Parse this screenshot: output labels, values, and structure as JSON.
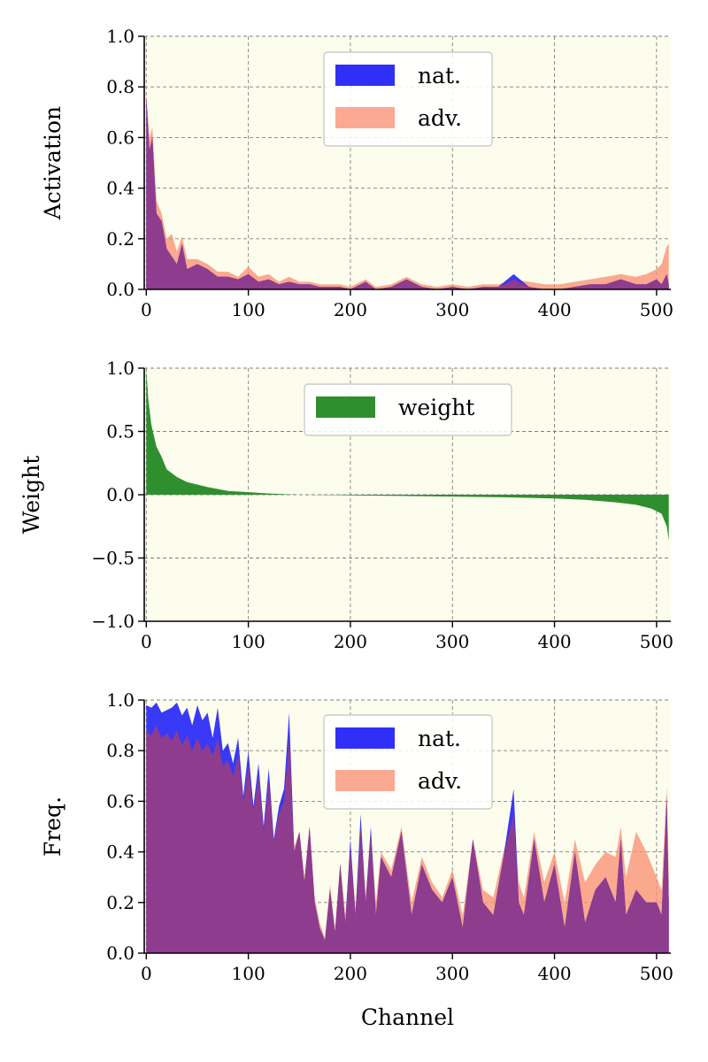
{
  "colors": {
    "background": "#fdfdee",
    "nat": "#2424f8",
    "adv": "#fa8c6e",
    "overlap": "#8e3c8e",
    "weight": "#2f8f2f",
    "grid": "#808080"
  },
  "chart_data": [
    {
      "type": "area",
      "ylabel": "Activation",
      "xlabel": "",
      "xlim": [
        -2,
        514
      ],
      "ylim": [
        0.0,
        1.0
      ],
      "xticks": [
        0,
        100,
        200,
        300,
        400,
        500
      ],
      "yticks": [
        "0.0",
        "0.2",
        "0.4",
        "0.6",
        "0.8",
        "1.0"
      ],
      "xtick_labels": [
        "0",
        "100",
        "200",
        "300",
        "400",
        "500"
      ],
      "grid": true,
      "legend_placement": "upper-center",
      "legend_labels": [
        "nat.",
        "adv."
      ],
      "series": [
        {
          "name": "nat.",
          "color": "#2424f8",
          "x": [
            0,
            3,
            6,
            10,
            15,
            20,
            25,
            30,
            35,
            40,
            50,
            60,
            70,
            80,
            90,
            100,
            110,
            120,
            130,
            140,
            150,
            160,
            170,
            180,
            190,
            200,
            215,
            225,
            240,
            255,
            270,
            285,
            300,
            315,
            330,
            345,
            360,
            375,
            390,
            405,
            420,
            435,
            450,
            465,
            480,
            490,
            500,
            505,
            510,
            512
          ],
          "y": [
            0.76,
            0.55,
            0.6,
            0.3,
            0.27,
            0.16,
            0.13,
            0.1,
            0.18,
            0.08,
            0.1,
            0.08,
            0.05,
            0.05,
            0.04,
            0.06,
            0.03,
            0.04,
            0.02,
            0.03,
            0.02,
            0.02,
            0.01,
            0.01,
            0.01,
            0.0,
            0.03,
            0.0,
            0.01,
            0.04,
            0.01,
            0.0,
            0.01,
            0.0,
            0.01,
            0.01,
            0.06,
            0.01,
            0.0,
            0.0,
            0.01,
            0.02,
            0.02,
            0.04,
            0.02,
            0.02,
            0.04,
            0.02,
            0.06,
            0.02
          ]
        },
        {
          "name": "adv.",
          "color": "#fa8c6e",
          "x": [
            0,
            3,
            6,
            10,
            15,
            20,
            25,
            30,
            35,
            40,
            50,
            60,
            70,
            80,
            90,
            100,
            110,
            120,
            130,
            140,
            150,
            160,
            170,
            180,
            190,
            200,
            215,
            225,
            240,
            255,
            270,
            285,
            300,
            315,
            330,
            345,
            360,
            375,
            390,
            405,
            420,
            435,
            450,
            465,
            480,
            490,
            500,
            505,
            510,
            512
          ],
          "y": [
            0.78,
            0.6,
            0.64,
            0.35,
            0.3,
            0.2,
            0.22,
            0.15,
            0.21,
            0.12,
            0.12,
            0.1,
            0.07,
            0.07,
            0.05,
            0.09,
            0.05,
            0.06,
            0.03,
            0.05,
            0.03,
            0.03,
            0.02,
            0.02,
            0.02,
            0.01,
            0.04,
            0.01,
            0.02,
            0.05,
            0.02,
            0.01,
            0.02,
            0.01,
            0.02,
            0.02,
            0.04,
            0.03,
            0.02,
            0.02,
            0.03,
            0.04,
            0.05,
            0.06,
            0.05,
            0.06,
            0.08,
            0.1,
            0.17,
            0.18
          ]
        }
      ]
    },
    {
      "type": "area",
      "ylabel": "Weight",
      "xlabel": "",
      "xlim": [
        -2,
        514
      ],
      "ylim": [
        -1.0,
        1.0
      ],
      "xticks": [
        0,
        100,
        200,
        300,
        400,
        500
      ],
      "yticks": [
        "−1.0",
        "−0.5",
        "0.0",
        "0.5",
        "1.0"
      ],
      "ytick_values": [
        -1.0,
        -0.5,
        0.0,
        0.5,
        1.0
      ],
      "xtick_labels": [
        "0",
        "100",
        "200",
        "300",
        "400",
        "500"
      ],
      "grid": true,
      "legend_placement": "upper-center",
      "legend_labels": [
        "weight"
      ],
      "series": [
        {
          "name": "weight",
          "color": "#2f8f2f",
          "x": [
            0,
            2,
            5,
            10,
            15,
            20,
            30,
            40,
            60,
            80,
            100,
            120,
            150,
            200,
            250,
            300,
            350,
            400,
            430,
            460,
            480,
            495,
            505,
            510,
            512
          ],
          "y": [
            1.0,
            0.75,
            0.55,
            0.38,
            0.3,
            0.2,
            0.14,
            0.1,
            0.06,
            0.03,
            0.02,
            0.01,
            0.0,
            -0.005,
            -0.01,
            -0.015,
            -0.02,
            -0.03,
            -0.04,
            -0.06,
            -0.08,
            -0.11,
            -0.15,
            -0.25,
            -0.36
          ]
        }
      ]
    },
    {
      "type": "area",
      "ylabel": "Freq.",
      "xlabel": "Channel",
      "xlim": [
        -2,
        514
      ],
      "ylim": [
        0.0,
        1.0
      ],
      "xticks": [
        0,
        100,
        200,
        300,
        400,
        500
      ],
      "yticks": [
        "0.0",
        "0.2",
        "0.4",
        "0.6",
        "0.8",
        "1.0"
      ],
      "xtick_labels": [
        "0",
        "100",
        "200",
        "300",
        "400",
        "500"
      ],
      "grid": true,
      "legend_placement": "upper-center",
      "legend_labels": [
        "nat.",
        "adv."
      ],
      "series": [
        {
          "name": "nat.",
          "color": "#2424f8",
          "x": [
            0,
            5,
            10,
            15,
            20,
            25,
            30,
            35,
            40,
            45,
            50,
            55,
            60,
            65,
            70,
            75,
            80,
            85,
            90,
            95,
            100,
            105,
            110,
            115,
            120,
            125,
            130,
            135,
            140,
            145,
            150,
            155,
            160,
            165,
            170,
            175,
            180,
            185,
            190,
            195,
            200,
            205,
            210,
            215,
            220,
            225,
            230,
            240,
            250,
            260,
            270,
            280,
            290,
            300,
            310,
            320,
            330,
            340,
            350,
            360,
            365,
            370,
            380,
            390,
            400,
            410,
            420,
            430,
            440,
            450,
            460,
            465,
            470,
            480,
            490,
            500,
            505,
            510,
            512
          ],
          "y": [
            0.98,
            0.97,
            0.99,
            0.95,
            0.96,
            0.97,
            0.99,
            0.94,
            0.97,
            0.9,
            0.98,
            0.92,
            0.95,
            0.85,
            0.97,
            0.8,
            0.83,
            0.75,
            0.85,
            0.62,
            0.8,
            0.58,
            0.75,
            0.5,
            0.73,
            0.45,
            0.58,
            0.65,
            0.95,
            0.4,
            0.48,
            0.28,
            0.5,
            0.2,
            0.1,
            0.05,
            0.25,
            0.08,
            0.35,
            0.12,
            0.45,
            0.15,
            0.55,
            0.2,
            0.5,
            0.15,
            0.38,
            0.3,
            0.48,
            0.15,
            0.35,
            0.25,
            0.2,
            0.3,
            0.1,
            0.45,
            0.2,
            0.15,
            0.38,
            0.65,
            0.2,
            0.15,
            0.45,
            0.2,
            0.35,
            0.1,
            0.4,
            0.12,
            0.25,
            0.3,
            0.2,
            0.45,
            0.15,
            0.25,
            0.2,
            0.2,
            0.15,
            0.62,
            0.2
          ]
        },
        {
          "name": "adv.",
          "color": "#fa8c6e",
          "x": [
            0,
            5,
            10,
            15,
            20,
            25,
            30,
            35,
            40,
            45,
            50,
            55,
            60,
            65,
            70,
            75,
            80,
            85,
            90,
            95,
            100,
            105,
            110,
            115,
            120,
            125,
            130,
            135,
            140,
            145,
            150,
            155,
            160,
            165,
            170,
            175,
            180,
            185,
            190,
            195,
            200,
            205,
            210,
            215,
            220,
            225,
            230,
            240,
            250,
            260,
            270,
            280,
            290,
            300,
            310,
            320,
            330,
            340,
            350,
            360,
            365,
            370,
            380,
            390,
            400,
            410,
            420,
            430,
            440,
            450,
            460,
            465,
            470,
            480,
            490,
            500,
            505,
            510,
            512
          ],
          "y": [
            0.88,
            0.86,
            0.9,
            0.85,
            0.87,
            0.84,
            0.88,
            0.82,
            0.86,
            0.8,
            0.85,
            0.8,
            0.83,
            0.78,
            0.85,
            0.74,
            0.76,
            0.7,
            0.78,
            0.6,
            0.74,
            0.56,
            0.7,
            0.48,
            0.68,
            0.44,
            0.55,
            0.6,
            0.85,
            0.42,
            0.48,
            0.3,
            0.5,
            0.22,
            0.12,
            0.06,
            0.27,
            0.1,
            0.36,
            0.15,
            0.42,
            0.18,
            0.5,
            0.23,
            0.48,
            0.2,
            0.4,
            0.33,
            0.5,
            0.2,
            0.38,
            0.28,
            0.22,
            0.33,
            0.15,
            0.45,
            0.25,
            0.22,
            0.4,
            0.55,
            0.28,
            0.22,
            0.48,
            0.28,
            0.4,
            0.2,
            0.45,
            0.28,
            0.35,
            0.4,
            0.38,
            0.5,
            0.3,
            0.48,
            0.4,
            0.3,
            0.25,
            0.66,
            0.3
          ]
        }
      ]
    }
  ]
}
